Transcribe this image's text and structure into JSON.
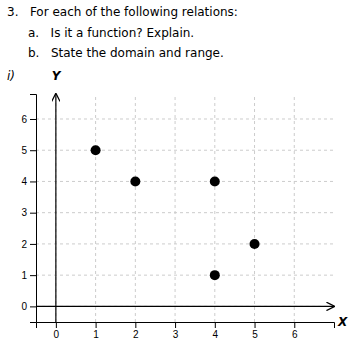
{
  "chart_data": {
    "type": "scatter",
    "title": "3.   For each of the following relations:",
    "annotations": [
      "a.   Is it a function? Explain.",
      "b.   State the domain and range.",
      "i)"
    ],
    "x_label": "X",
    "y_label": "Y",
    "x": [
      1,
      2,
      4,
      4,
      5
    ],
    "values": [
      5,
      4,
      4,
      1,
      2
    ],
    "color": "#000000",
    "xlim": [
      -0.5,
      7.0
    ],
    "ylim": [
      -0.5,
      6.8
    ],
    "xticks": [
      0,
      1,
      2,
      3,
      4,
      5,
      6
    ],
    "yticks": [
      0,
      1,
      2,
      3,
      4,
      5,
      6
    ],
    "grid": true
  }
}
